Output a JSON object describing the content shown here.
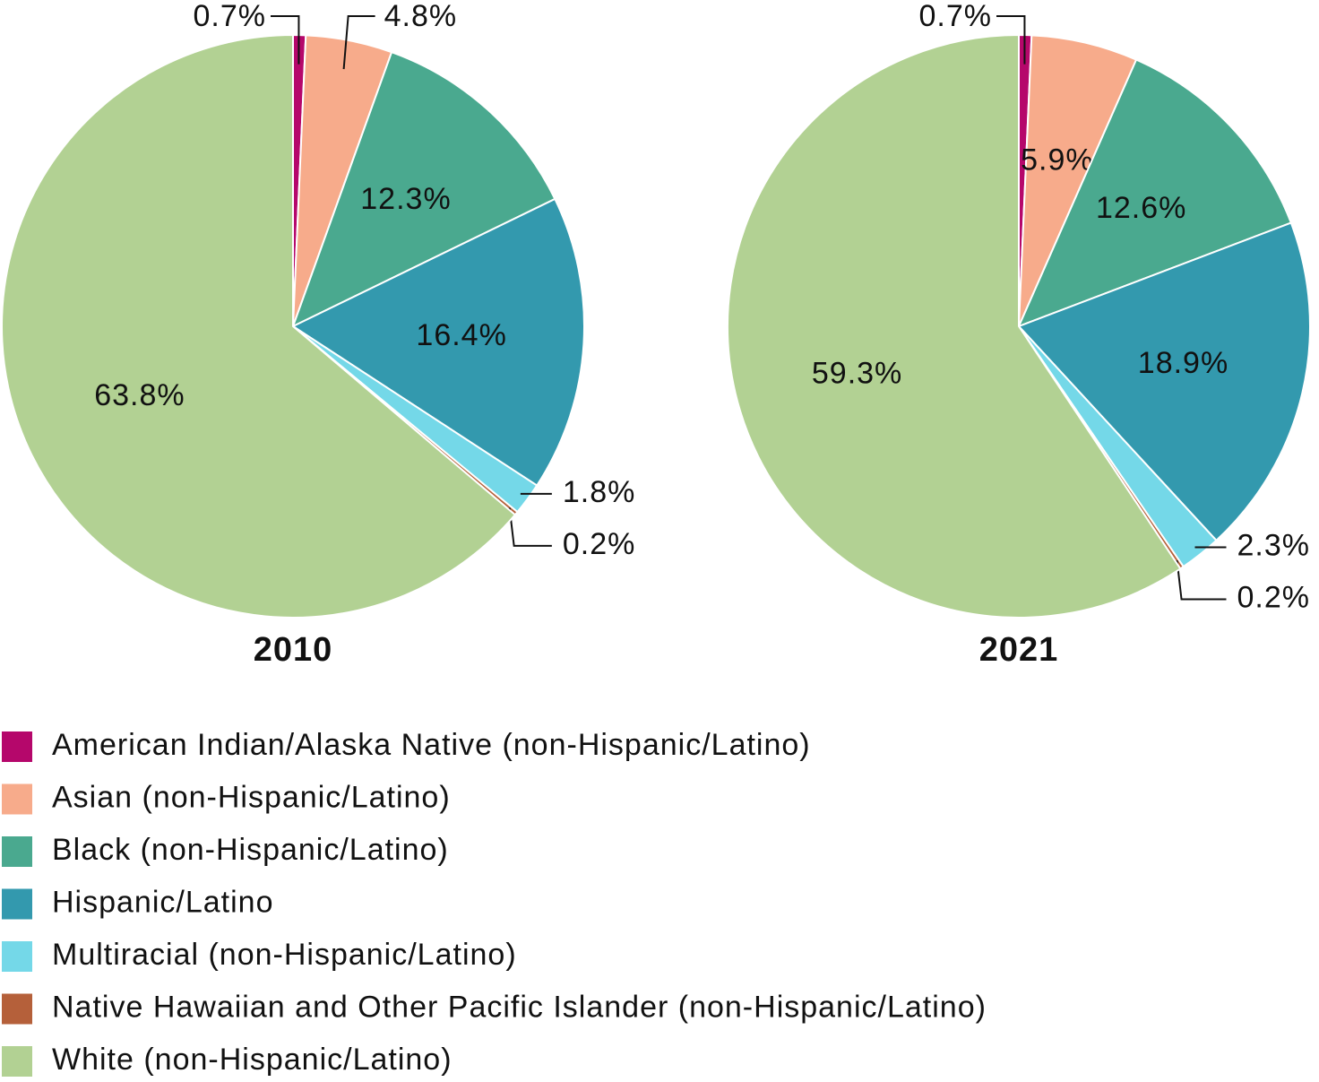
{
  "chart_data": [
    {
      "type": "pie",
      "title": "2010",
      "values": [
        0.7,
        4.8,
        12.3,
        16.4,
        1.8,
        0.2,
        63.8
      ],
      "value_labels": [
        "0.7%",
        "4.8%",
        "12.3%",
        "16.4%",
        "1.8%",
        "0.2%",
        "63.8%"
      ]
    },
    {
      "type": "pie",
      "title": "2021",
      "values": [
        0.7,
        5.9,
        12.6,
        18.9,
        2.3,
        0.2,
        59.3
      ],
      "value_labels": [
        "0.7%",
        "5.9%",
        "12.6%",
        "18.9%",
        "2.3%",
        "0.2%",
        "59.3%"
      ]
    }
  ],
  "legend": {
    "labels": [
      "American Indian/Alaska Native (non-Hispanic/Latino)",
      "Asian (non-Hispanic/Latino)",
      "Black (non-Hispanic/Latino)",
      "Hispanic/Latino",
      "Multiracial (non-Hispanic/Latino)",
      "Native Hawaiian and Other Pacific Islander (non-Hispanic/Latino)",
      "White (non-Hispanic/Latino)"
    ],
    "colors": [
      "#b5076b",
      "#f7ab8b",
      "#4aa98f",
      "#3399ae",
      "#74d8e8",
      "#b5603a",
      "#b2d193"
    ]
  }
}
